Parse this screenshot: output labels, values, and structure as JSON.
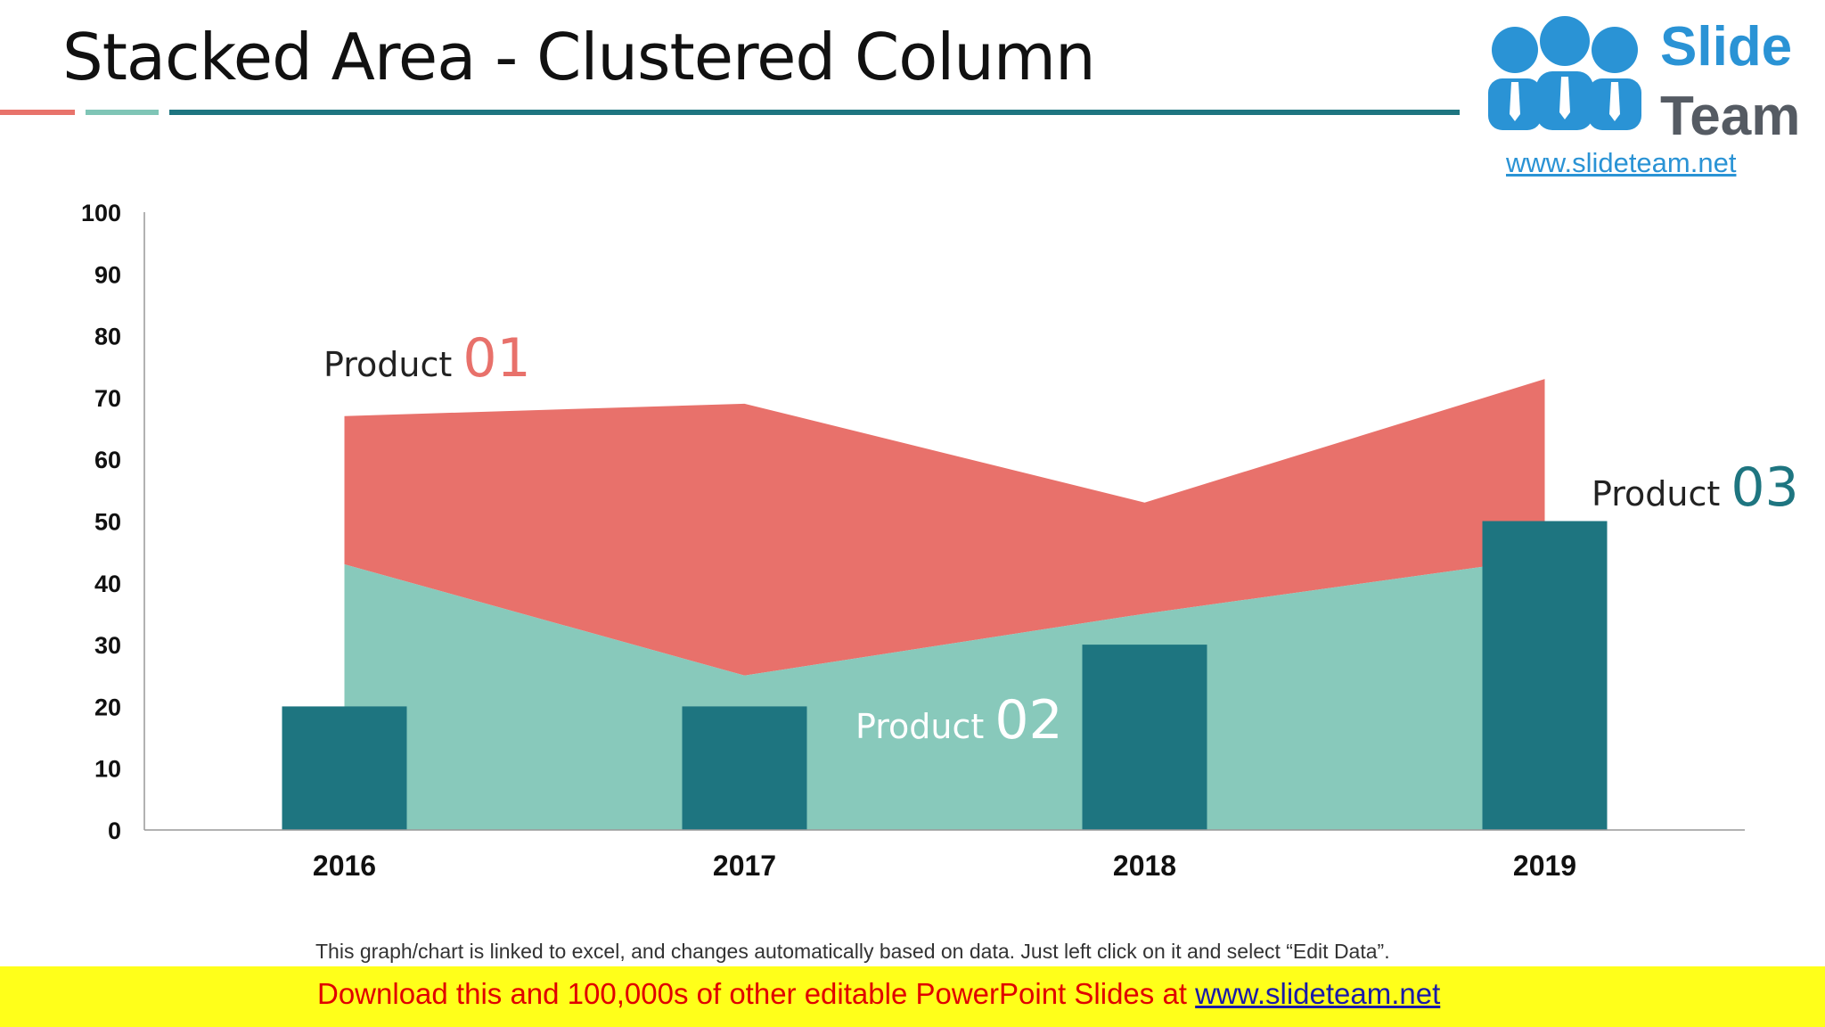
{
  "slide": {
    "title": "Stacked Area - Clustered Column",
    "note": "This graph/chart is linked to excel, and changes automatically based on data. Just left click on it and select “Edit Data”.",
    "banner_text": "Download this and 100,000s of other editable PowerPoint Slides at ",
    "banner_link": "www.slideteam.net"
  },
  "logo": {
    "word1": "Slide",
    "word2": "Team",
    "url": "www.slideteam.net"
  },
  "labels": {
    "p1_word": "Product ",
    "p1_num": "01",
    "p2_word": "Product ",
    "p2_num": "02",
    "p3_word": "Product ",
    "p3_num": "03"
  },
  "colors": {
    "product01": "#e8716b",
    "product02": "#88c9bb",
    "product03": "#1e7580",
    "rule_red": "#e8736b",
    "rule_mint": "#7fc5b6",
    "rule_teal": "#1e7580",
    "logo_blue": "#2a93d5",
    "logo_gray": "#555b63"
  },
  "chart_data": {
    "type": "area",
    "categories": [
      "2016",
      "2017",
      "2018",
      "2019"
    ],
    "ylim": [
      0,
      100
    ],
    "yticks": [
      0,
      10,
      20,
      30,
      40,
      50,
      60,
      70,
      80,
      90,
      100
    ],
    "grid": false,
    "series": [
      {
        "name": "Product 01",
        "type": "stacked-area",
        "values": [
          24,
          44,
          18,
          29
        ]
      },
      {
        "name": "Product 02",
        "type": "stacked-area",
        "values": [
          43,
          25,
          35,
          44
        ]
      },
      {
        "name": "Product 03",
        "type": "column",
        "values": [
          20,
          20,
          30,
          50
        ]
      }
    ]
  }
}
